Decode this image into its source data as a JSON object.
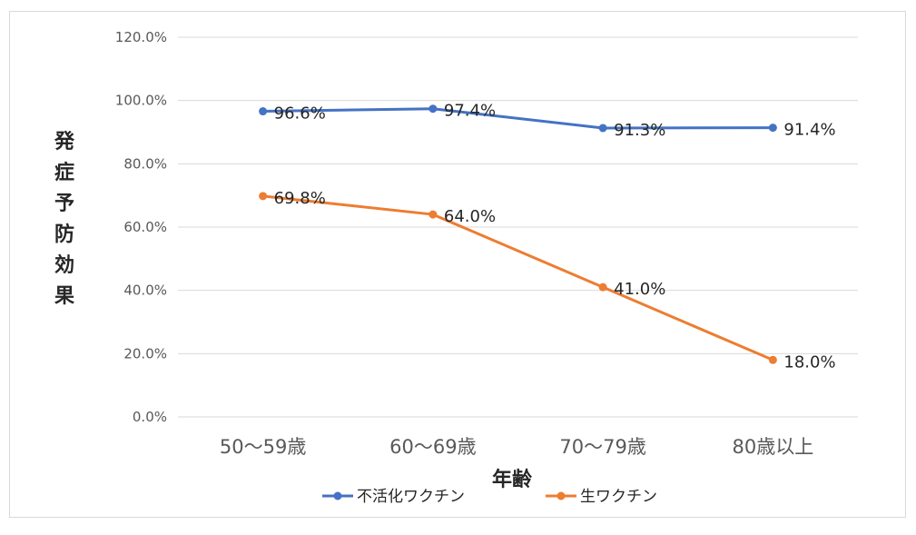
{
  "chart_data": {
    "type": "line",
    "title": "",
    "xlabel": "年齢",
    "ylabel": "発症予防効果",
    "categories": [
      "50〜59歳",
      "60〜69歳",
      "70〜79歳",
      "80歳以上"
    ],
    "ylim": [
      0,
      120
    ],
    "yticks": [
      "0.0%",
      "20.0%",
      "40.0%",
      "60.0%",
      "80.0%",
      "100.0%",
      "120.0%"
    ],
    "grid": true,
    "legend_position": "bottom",
    "series": [
      {
        "name": "不活化ワクチン",
        "color": "#4472c4",
        "values": [
          96.6,
          97.4,
          91.3,
          91.4
        ],
        "labels": [
          "96.6%",
          "97.4%",
          "91.3%",
          "91.4%"
        ]
      },
      {
        "name": "生ワクチン",
        "color": "#ed7d31",
        "values": [
          69.8,
          64.0,
          41.0,
          18.0
        ],
        "labels": [
          "69.8%",
          "64.0%",
          "41.0%",
          "18.0%"
        ]
      }
    ]
  }
}
